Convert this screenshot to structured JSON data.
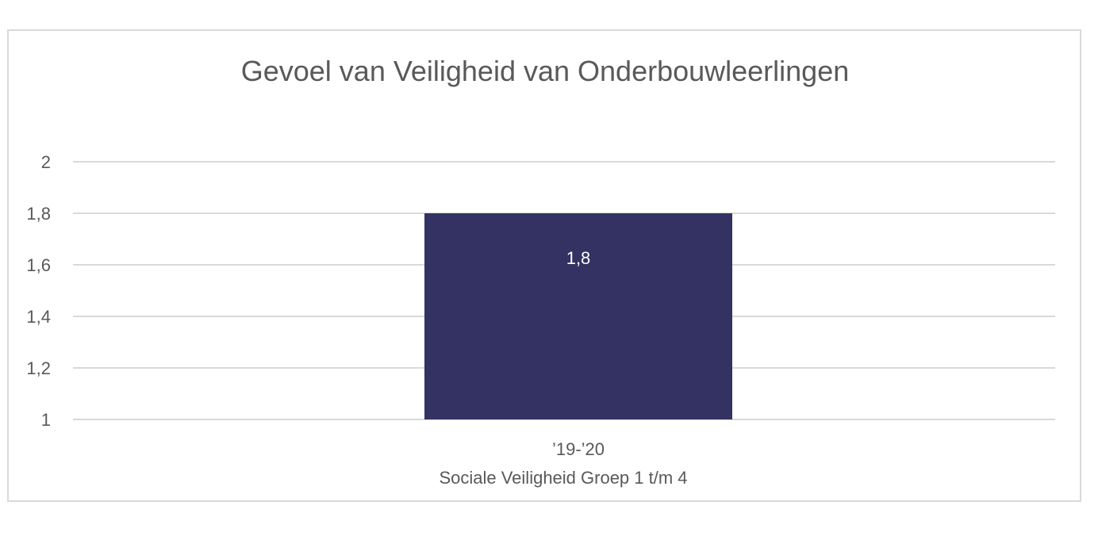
{
  "chart_data": {
    "type": "bar",
    "title": "Gevoel van Veiligheid van Onderbouwleerlingen",
    "categories": [
      "’19-’20"
    ],
    "category_group_label": "Sociale Veiligheid Groep 1 t/m 4",
    "series": [
      {
        "values": [
          1.8
        ],
        "color": "#333262"
      }
    ],
    "data_labels": [
      "1,8"
    ],
    "ylim": [
      1,
      2
    ],
    "yticks": [
      1,
      1.2,
      1.4,
      1.6,
      1.8,
      2
    ],
    "ytick_labels": [
      "1",
      "1,2",
      "1,4",
      "1,6",
      "1,8",
      "2"
    ],
    "grid": true,
    "legend": "none",
    "xlabel": "",
    "ylabel": ""
  }
}
